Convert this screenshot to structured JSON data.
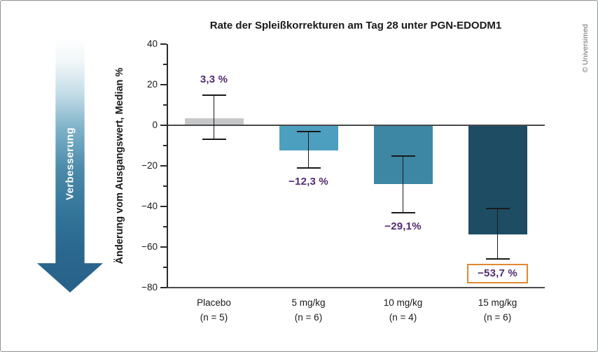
{
  "figure": {
    "copyright": "© Universimed",
    "improvement_label": "Verbesserung"
  },
  "colors": {
    "value_label": "#532a72",
    "highlight_box": "#e0892f",
    "axis": "#2b2b2b",
    "gridline": "#4a4a4c",
    "arrow_gradient_top": "#ffffff",
    "arrow_gradient_bottom": "#27618a"
  },
  "chart_data": {
    "type": "bar",
    "title": "Rate der Spleißkorrekturen am Tag 28 unter PGN-EDODM1",
    "ylabel": "Änderung vom Ausgangswert, Median %",
    "xlabel": "",
    "ylim": [
      -80,
      40
    ],
    "grid": false,
    "legend": "none",
    "y_axis": {
      "major_ticks": [
        {
          "v": 40,
          "label": "40"
        },
        {
          "v": 20,
          "label": "20"
        },
        {
          "v": 0,
          "label": "0"
        },
        {
          "v": -20,
          "label": "−20"
        },
        {
          "v": -40,
          "label": "−40"
        },
        {
          "v": -60,
          "label": "−60"
        },
        {
          "v": -80,
          "label": "−80"
        }
      ],
      "minor_ticks": [
        30,
        10,
        -10,
        -30,
        -50,
        -70
      ]
    },
    "categories": [
      "Placebo",
      "5 mg/kg",
      "10 mg/kg",
      "15 mg/kg"
    ],
    "groups": [
      {
        "category": "Placebo",
        "n": "(n = 5)",
        "value": 3.3,
        "value_label": "3,3 %",
        "error_high": 15,
        "error_low": -7,
        "color": "#c6c7c9",
        "highlighted": false
      },
      {
        "category": "5 mg/kg",
        "n": "(n = 6)",
        "value": -12.3,
        "value_label": "−12,3 %",
        "error_high": -3,
        "error_low": -21,
        "color": "#4d9fbf",
        "highlighted": false
      },
      {
        "category": "10 mg/kg",
        "n": "(n = 4)",
        "value": -29.1,
        "value_label": "−29,1%",
        "error_high": -15,
        "error_low": -43,
        "color": "#3d87a4",
        "highlighted": false
      },
      {
        "category": "15 mg/kg",
        "n": "(n = 6)",
        "value": -53.7,
        "value_label": "−53,7 %",
        "error_high": -41,
        "error_low": -66,
        "color": "#1d4c63",
        "highlighted": true
      }
    ]
  }
}
